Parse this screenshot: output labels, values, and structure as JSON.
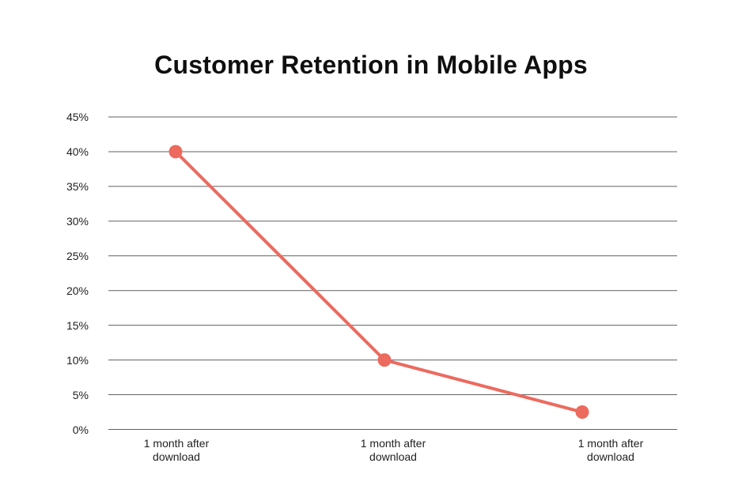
{
  "page": {
    "background_color": "#ffffff"
  },
  "chart_data": {
    "type": "line",
    "title": "Customer Retention in Mobile Apps",
    "categories": [
      "1 month after\ndownload",
      "1 month after\ndownload",
      "1 month after\ndownload"
    ],
    "values": [
      40,
      10,
      2.5
    ],
    "xlabel": "",
    "ylabel": "",
    "ylim": [
      0,
      45
    ],
    "ytick_step": 5,
    "ytick_labels": [
      "0%",
      "5%",
      "10%",
      "15%",
      "20%",
      "25%",
      "30%",
      "35%",
      "40%",
      "45%"
    ],
    "grid": "horizontal",
    "legend_position": "none",
    "line_color": "#EC6A5E",
    "grid_color": "#606060",
    "tick_text_color": "#1f1f1f",
    "title_color": "#0f0f0f"
  }
}
